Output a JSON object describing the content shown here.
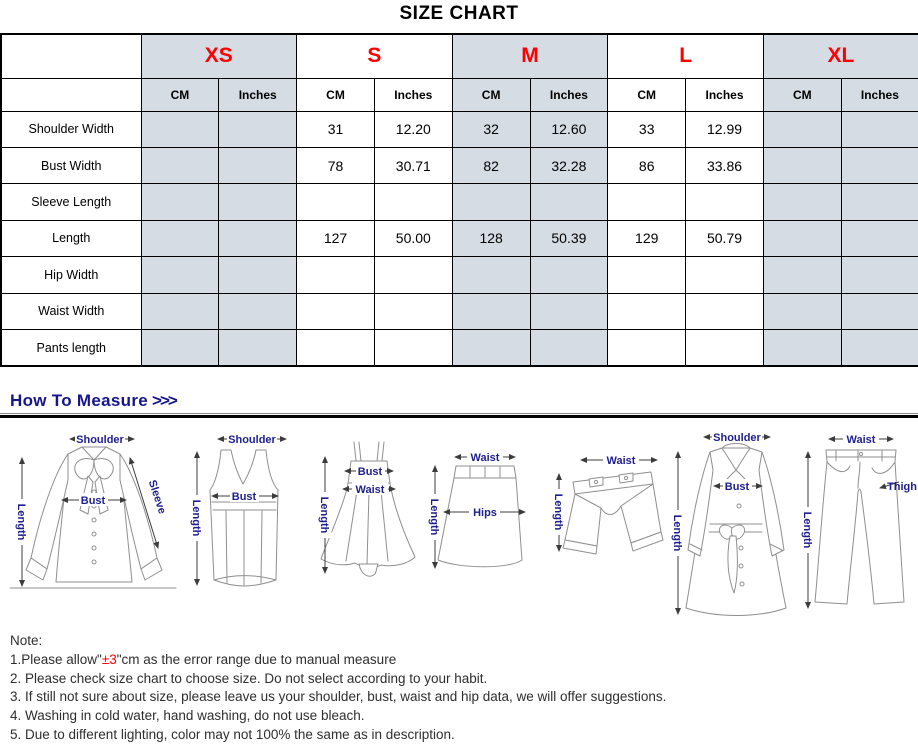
{
  "page": {
    "title": "SIZE CHART"
  },
  "size_table": {
    "sizes": [
      "XS",
      "S",
      "M",
      "L",
      "XL"
    ],
    "unit_headers": [
      "CM",
      "Inches"
    ],
    "accent_color": "#ff0000",
    "shade_color": "#d6dce4",
    "row_labels": [
      "Shoulder Width",
      "Bust Width",
      "Sleeve Length",
      "Length",
      "Hip Width",
      "Waist Width",
      "Pants length"
    ],
    "rows": [
      {
        "label": "Shoulder Width",
        "values": [
          "",
          "",
          "31",
          "12.20",
          "32",
          "12.60",
          "33",
          "12.99",
          "",
          ""
        ]
      },
      {
        "label": "Bust Width",
        "values": [
          "",
          "",
          "78",
          "30.71",
          "82",
          "32.28",
          "86",
          "33.86",
          "",
          ""
        ]
      },
      {
        "label": "Sleeve Length",
        "values": [
          "",
          "",
          "",
          "",
          "",
          "",
          "",
          "",
          "",
          ""
        ]
      },
      {
        "label": "Length",
        "values": [
          "",
          "",
          "127",
          "50.00",
          "128",
          "50.39",
          "129",
          "50.79",
          "",
          ""
        ]
      },
      {
        "label": "Hip Width",
        "values": [
          "",
          "",
          "",
          "",
          "",
          "",
          "",
          "",
          "",
          ""
        ]
      },
      {
        "label": "Waist Width",
        "values": [
          "",
          "",
          "",
          "",
          "",
          "",
          "",
          "",
          "",
          ""
        ]
      },
      {
        "label": "Pants length",
        "values": [
          "",
          "",
          "",
          "",
          "",
          "",
          "",
          "",
          "",
          ""
        ]
      }
    ]
  },
  "how_to_measure": {
    "heading": "How To Measure",
    "arrows": ">>>",
    "heading_color": "#16168c",
    "figures": [
      {
        "name": "blouse",
        "labels": {
          "top": "Shoulder",
          "middle": "Bust",
          "side": "Sleeve",
          "left": "Length"
        }
      },
      {
        "name": "tank-top",
        "labels": {
          "top": "Shoulder",
          "middle": "Bust",
          "left": "Length"
        }
      },
      {
        "name": "cami-dress",
        "labels": {
          "bust": "Bust",
          "waist": "Waist",
          "left": "Length"
        }
      },
      {
        "name": "skirt",
        "labels": {
          "top": "Waist",
          "middle": "Hips",
          "left": "Length"
        }
      },
      {
        "name": "shorts",
        "labels": {
          "top": "Waist",
          "left": "Length"
        }
      },
      {
        "name": "trench-coat",
        "labels": {
          "top": "Shoulder",
          "middle": "Bust",
          "left": "Length"
        }
      },
      {
        "name": "pants",
        "labels": {
          "top": "Waist",
          "side": "Thigh",
          "left": "Length"
        }
      }
    ]
  },
  "notes": {
    "heading": "Note:",
    "note1": {
      "prefix": "1.Please allow\"",
      "highlight": "±3",
      "suffix": "\"cm as the error range due to manual measure"
    },
    "items": [
      "2. Please check size chart to choose size. Do not select according to your habit.",
      "3. If still not sure about size, please leave us your shoulder, bust, waist and hip data, we will offer suggestions.",
      "4. Washing in cold water, hand washing, do not use bleach.",
      "5. Due to different lighting, color may not 100% the same as in description."
    ]
  }
}
